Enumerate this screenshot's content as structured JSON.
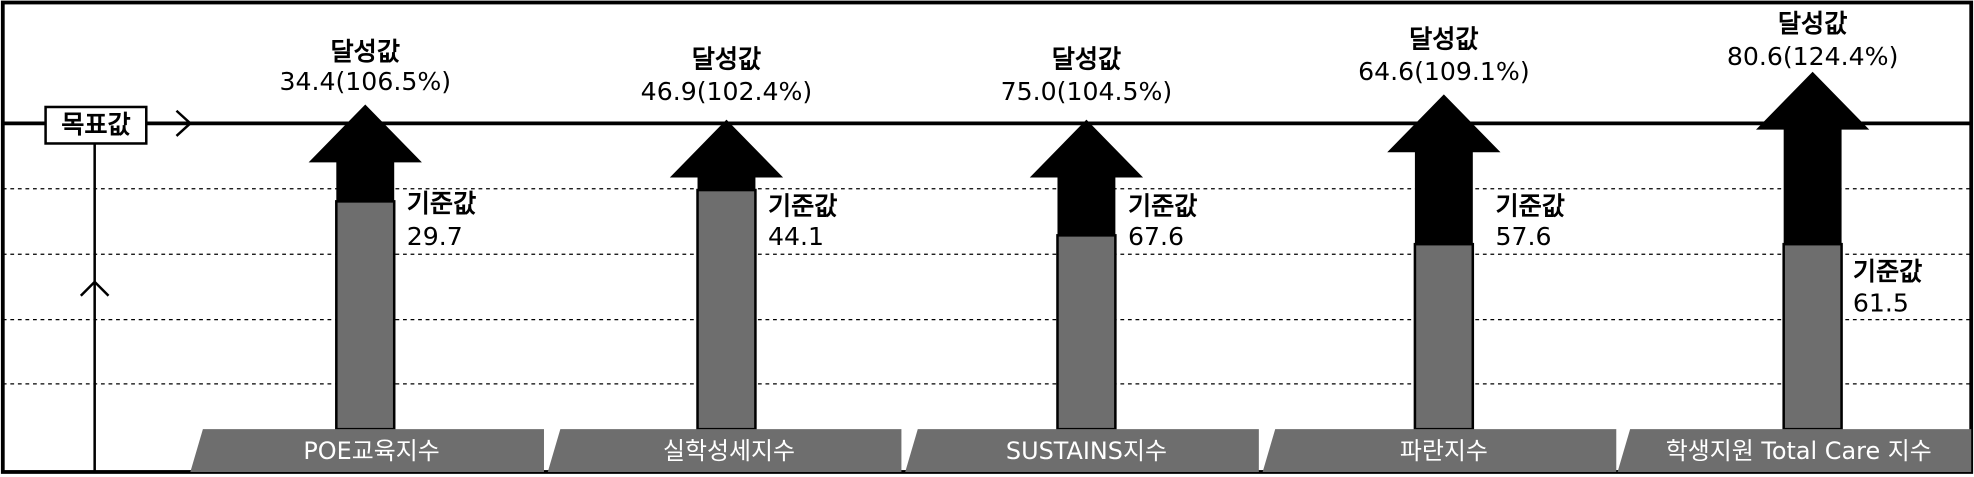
{
  "target_label": "목표값",
  "items": [
    {
      "category": "POE교육지수",
      "achieved_label": "달성값",
      "achieved": "34.4(106.5%)",
      "baseline_label": "기준값",
      "baseline": 29.7
    },
    {
      "category": "실학성세지수",
      "achieved_label": "달성값",
      "achieved": "46.9(102.4%)",
      "baseline_label": "기준값",
      "baseline": 44.1
    },
    {
      "category": "SUSTAINS지수",
      "achieved_label": "달성값",
      "achieved": "75.0(104.5%)",
      "baseline_label": "기준값",
      "baseline": 67.6
    },
    {
      "category": "파란지수",
      "achieved_label": "달성값",
      "achieved": "64.6(109.1%)",
      "baseline_label": "기준값",
      "baseline": 57.6
    },
    {
      "category": "학생지원 Total Care 지수",
      "achieved_label": "달성값",
      "achieved": "80.6(124.4%)",
      "baseline_label": "기준값",
      "baseline": 61.5
    }
  ]
}
